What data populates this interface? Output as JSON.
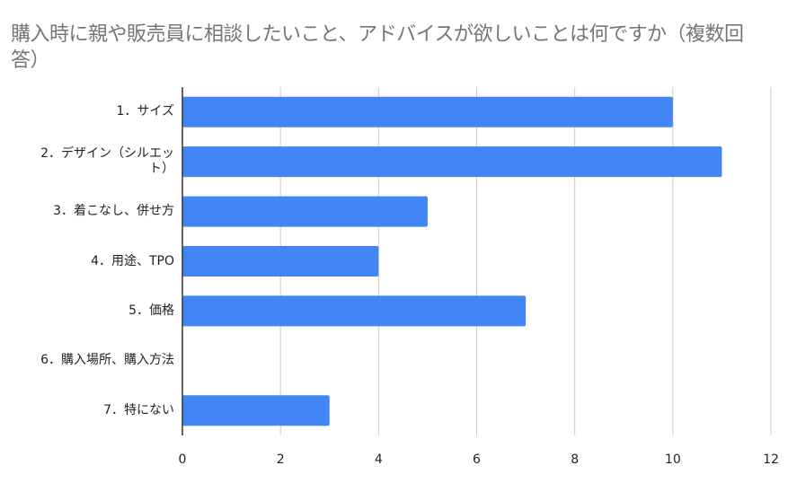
{
  "chart_data": {
    "type": "bar",
    "orientation": "horizontal",
    "title": "購入時に親や販売員に相談したいこと、アドバイスが欲しいことは何ですか（複数回答）",
    "categories": [
      "1．サイズ",
      "2．デザイン（シルエット）",
      "3．着こなし、併せ方",
      "4．用途、TPO",
      "5．価格",
      "6．購入場所、購入方法",
      "7．特にない"
    ],
    "values": [
      10,
      11,
      5,
      4,
      7,
      0,
      3
    ],
    "xlim": [
      0,
      12
    ],
    "xticks": [
      0,
      2,
      4,
      6,
      8,
      10,
      12
    ],
    "xlabel": "",
    "ylabel": "",
    "grid": true,
    "legend": "none",
    "bar_color": "#4285f4",
    "grid_color": "#cccccc",
    "axis_color": "#333333"
  }
}
